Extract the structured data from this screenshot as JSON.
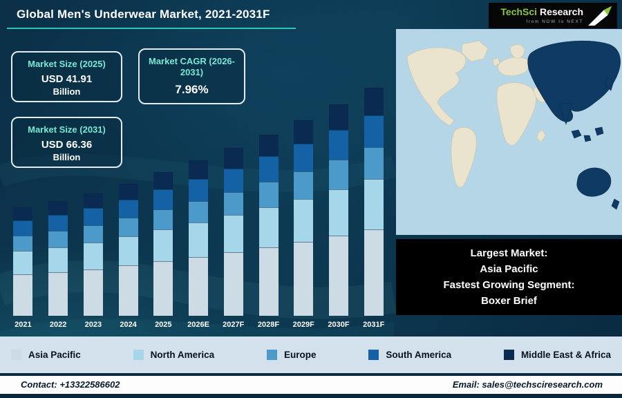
{
  "header": {
    "title": "Global Men's Underwear Market, 2021-2031F",
    "logo": {
      "brand_green": "TechSci",
      "brand_white": "Research",
      "tagline": "from NOW to NEXT"
    }
  },
  "stats": {
    "size_2025": {
      "label": "Market Size (2025)",
      "value": "USD 41.91",
      "unit": "Billion"
    },
    "cagr": {
      "label": "Market CAGR (2026-2031)",
      "value": "7.96%"
    },
    "size_2031": {
      "label": "Market Size (2031)",
      "value": "USD 66.36",
      "unit": "Billion"
    }
  },
  "chart_data": {
    "type": "bar",
    "stacked": true,
    "title": "Global Men's Underwear Market, 2021-2031F",
    "unit": "USD Billion",
    "categories": [
      "2021",
      "2022",
      "2023",
      "2024",
      "2025",
      "2026E",
      "2027F",
      "2028F",
      "2029F",
      "2030F",
      "2031F"
    ],
    "ylim": [
      0,
      70
    ],
    "grid": false,
    "legend_position": "bottom",
    "series": [
      {
        "name": "Asia Pacific",
        "color": "#ccdbe4",
        "values": [
          12.0,
          12.7,
          13.5,
          14.6,
          15.9,
          17.2,
          18.6,
          20.0,
          21.6,
          23.4,
          25.2
        ]
      },
      {
        "name": "North America",
        "color": "#a5d6ea",
        "values": [
          6.9,
          7.3,
          7.8,
          8.5,
          9.2,
          10.0,
          10.7,
          11.6,
          12.5,
          13.5,
          14.6
        ]
      },
      {
        "name": "Europe",
        "color": "#4b9aca",
        "values": [
          4.4,
          4.7,
          5.0,
          5.4,
          5.9,
          6.3,
          6.8,
          7.4,
          8.0,
          8.6,
          9.3
        ]
      },
      {
        "name": "South America",
        "color": "#1561a6",
        "values": [
          4.4,
          4.7,
          5.0,
          5.4,
          5.9,
          6.3,
          6.8,
          7.4,
          8.0,
          8.6,
          9.3
        ]
      },
      {
        "name": "Middle East & Africa",
        "color": "#0a2a52",
        "values": [
          3.8,
          4.0,
          4.2,
          4.6,
          5.0,
          5.4,
          5.9,
          6.3,
          6.8,
          7.4,
          8.0
        ]
      }
    ]
  },
  "map": {
    "highlighted_region": "Asia Pacific"
  },
  "callout": {
    "line1": "Largest Market:",
    "line2": "Asia Pacific",
    "line3": "Fastest Growing Segment:",
    "line4": "Boxer Brief"
  },
  "footer": {
    "contact": "Contact: +13322586602",
    "email": "Email: sales@techsciresearch.com"
  }
}
